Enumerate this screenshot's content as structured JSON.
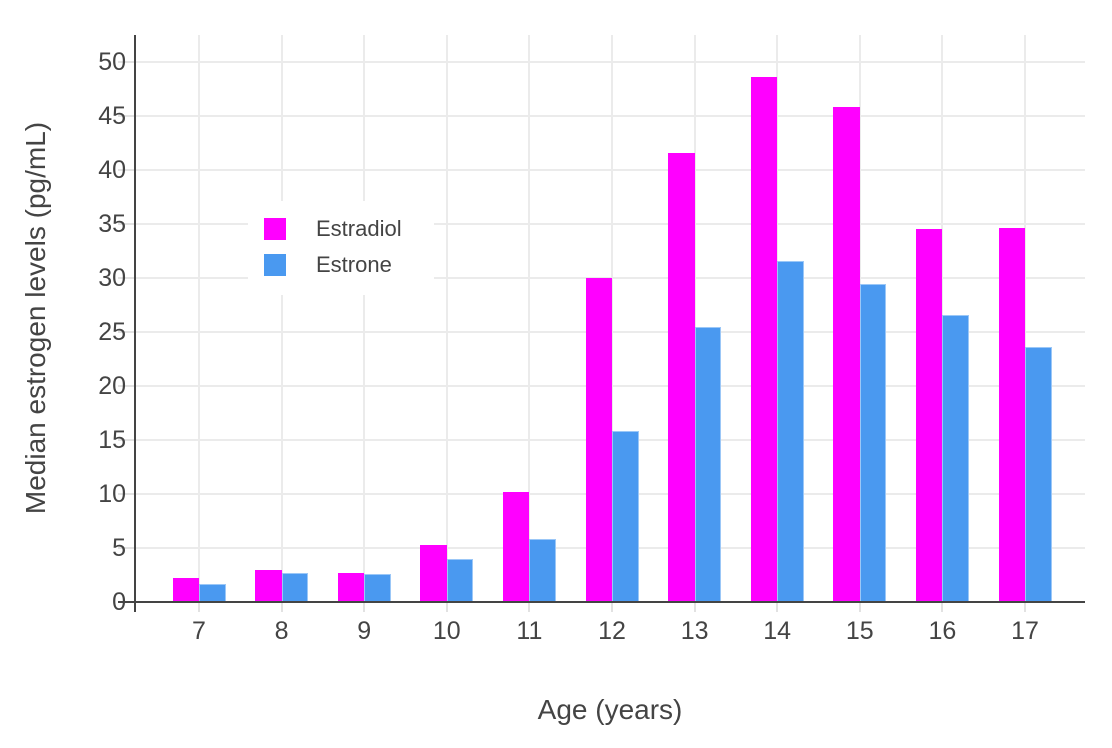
{
  "chart_data": {
    "type": "bar",
    "title": "",
    "xlabel": "Age (years)",
    "ylabel": "Median estrogen levels (pg/mL)",
    "categories": [
      "7",
      "8",
      "9",
      "10",
      "11",
      "12",
      "13",
      "14",
      "15",
      "16",
      "17"
    ],
    "series": [
      {
        "name": "Estradiol",
        "color": "#FF00FF",
        "values": [
          2.2,
          3.0,
          2.65,
          5.3,
          10.2,
          30.0,
          41.6,
          48.6,
          45.8,
          34.5,
          34.6
        ]
      },
      {
        "name": "Estrone",
        "color": "#4A99F0",
        "values": [
          1.7,
          2.7,
          2.6,
          4.0,
          5.8,
          15.8,
          25.5,
          31.6,
          29.4,
          26.6,
          23.6
        ]
      }
    ],
    "ylim": [
      0,
      52.5
    ],
    "yticks": [
      0,
      5,
      10,
      15,
      20,
      25,
      30,
      35,
      40,
      45,
      50
    ],
    "grid": true,
    "legend_position": "inside-top-left",
    "colors": {
      "grid": "#EBEBEB",
      "tick": "#E2E2E2",
      "axis_line": "#444444",
      "text": "#444444",
      "background": "#FFFFFF"
    }
  }
}
